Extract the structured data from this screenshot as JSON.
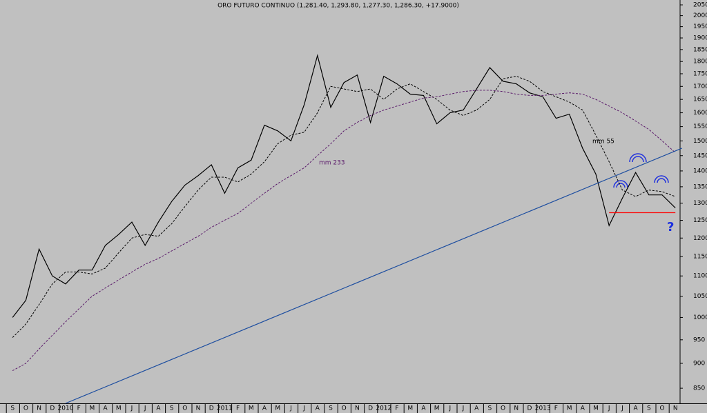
{
  "chart_data": {
    "type": "line",
    "title": "ORO FUTURO CONTINUO (1,281.40, 1,293.80, 1,277.30, 1,286.30, +17.9000)",
    "categories": [
      "S",
      "O",
      "N",
      "D",
      "2010",
      "F",
      "M",
      "A",
      "M",
      "J",
      "J",
      "A",
      "S",
      "O",
      "N",
      "D",
      "2011",
      "F",
      "M",
      "A",
      "M",
      "J",
      "J",
      "A",
      "S",
      "O",
      "N",
      "D",
      "2012",
      "F",
      "M",
      "A",
      "M",
      "J",
      "J",
      "A",
      "S",
      "O",
      "N",
      "D",
      "2013",
      "F",
      "M",
      "A",
      "M",
      "J",
      "J",
      "A",
      "S",
      "O",
      "N"
    ],
    "series": [
      {
        "color": "#000000",
        "dash": false,
        "values": [
          1000,
          1040,
          1170,
          1100,
          1080,
          1115,
          1115,
          1180,
          1210,
          1245,
          1180,
          1245,
          1305,
          1355,
          1385,
          1420,
          1330,
          1410,
          1435,
          1555,
          1535,
          1500,
          1630,
          1825,
          1620,
          1715,
          1745,
          1565,
          1740,
          1710,
          1670,
          1665,
          1560,
          1600,
          1610,
          1690,
          1775,
          1720,
          1710,
          1675,
          1660,
          1580,
          1595,
          1475,
          1390,
          1235,
          1315,
          1395,
          1325,
          1325,
          1286
        ]
      },
      {
        "name": "mm 55",
        "color": "#000000",
        "dash": true,
        "values": [
          955,
          985,
          1030,
          1080,
          1110,
          1110,
          1105,
          1120,
          1160,
          1200,
          1210,
          1205,
          1240,
          1290,
          1340,
          1380,
          1380,
          1365,
          1390,
          1430,
          1490,
          1520,
          1530,
          1600,
          1700,
          1690,
          1680,
          1690,
          1650,
          1690,
          1710,
          1680,
          1650,
          1610,
          1590,
          1610,
          1650,
          1730,
          1740,
          1720,
          1680,
          1660,
          1640,
          1610,
          1520,
          1430,
          1340,
          1320,
          1340,
          1335,
          1320
        ]
      },
      {
        "name": "mm 233",
        "color": "#5a1a6a",
        "dash": true,
        "values": [
          885,
          900,
          930,
          960,
          990,
          1020,
          1050,
          1070,
          1090,
          1110,
          1130,
          1145,
          1165,
          1185,
          1205,
          1230,
          1250,
          1270,
          1300,
          1330,
          1360,
          1385,
          1410,
          1450,
          1490,
          1535,
          1565,
          1590,
          1610,
          1625,
          1640,
          1655,
          1660,
          1670,
          1680,
          1685,
          1685,
          1680,
          1670,
          1665,
          1665,
          1670,
          1675,
          1670,
          1650,
          1625,
          1600,
          1570,
          1540,
          1500,
          1460
        ]
      }
    ],
    "trendline": {
      "x": [
        4,
        50.5
      ],
      "values": [
        821,
        1475
      ],
      "color": "#1f4fa0"
    },
    "neckline": {
      "x": [
        45,
        50
      ],
      "values": [
        1272,
        1272
      ],
      "color": "#ff0000"
    },
    "question": "?",
    "log_scale": true,
    "ylim": [
      821,
      2073
    ],
    "yticks": [
      850,
      900,
      950,
      1000,
      1050,
      1100,
      1150,
      1200,
      1250,
      1300,
      1350,
      1400,
      1450,
      1500,
      1550,
      1600,
      1650,
      1700,
      1750,
      1800,
      1850,
      1900,
      1950,
      2000,
      2050
    ]
  }
}
